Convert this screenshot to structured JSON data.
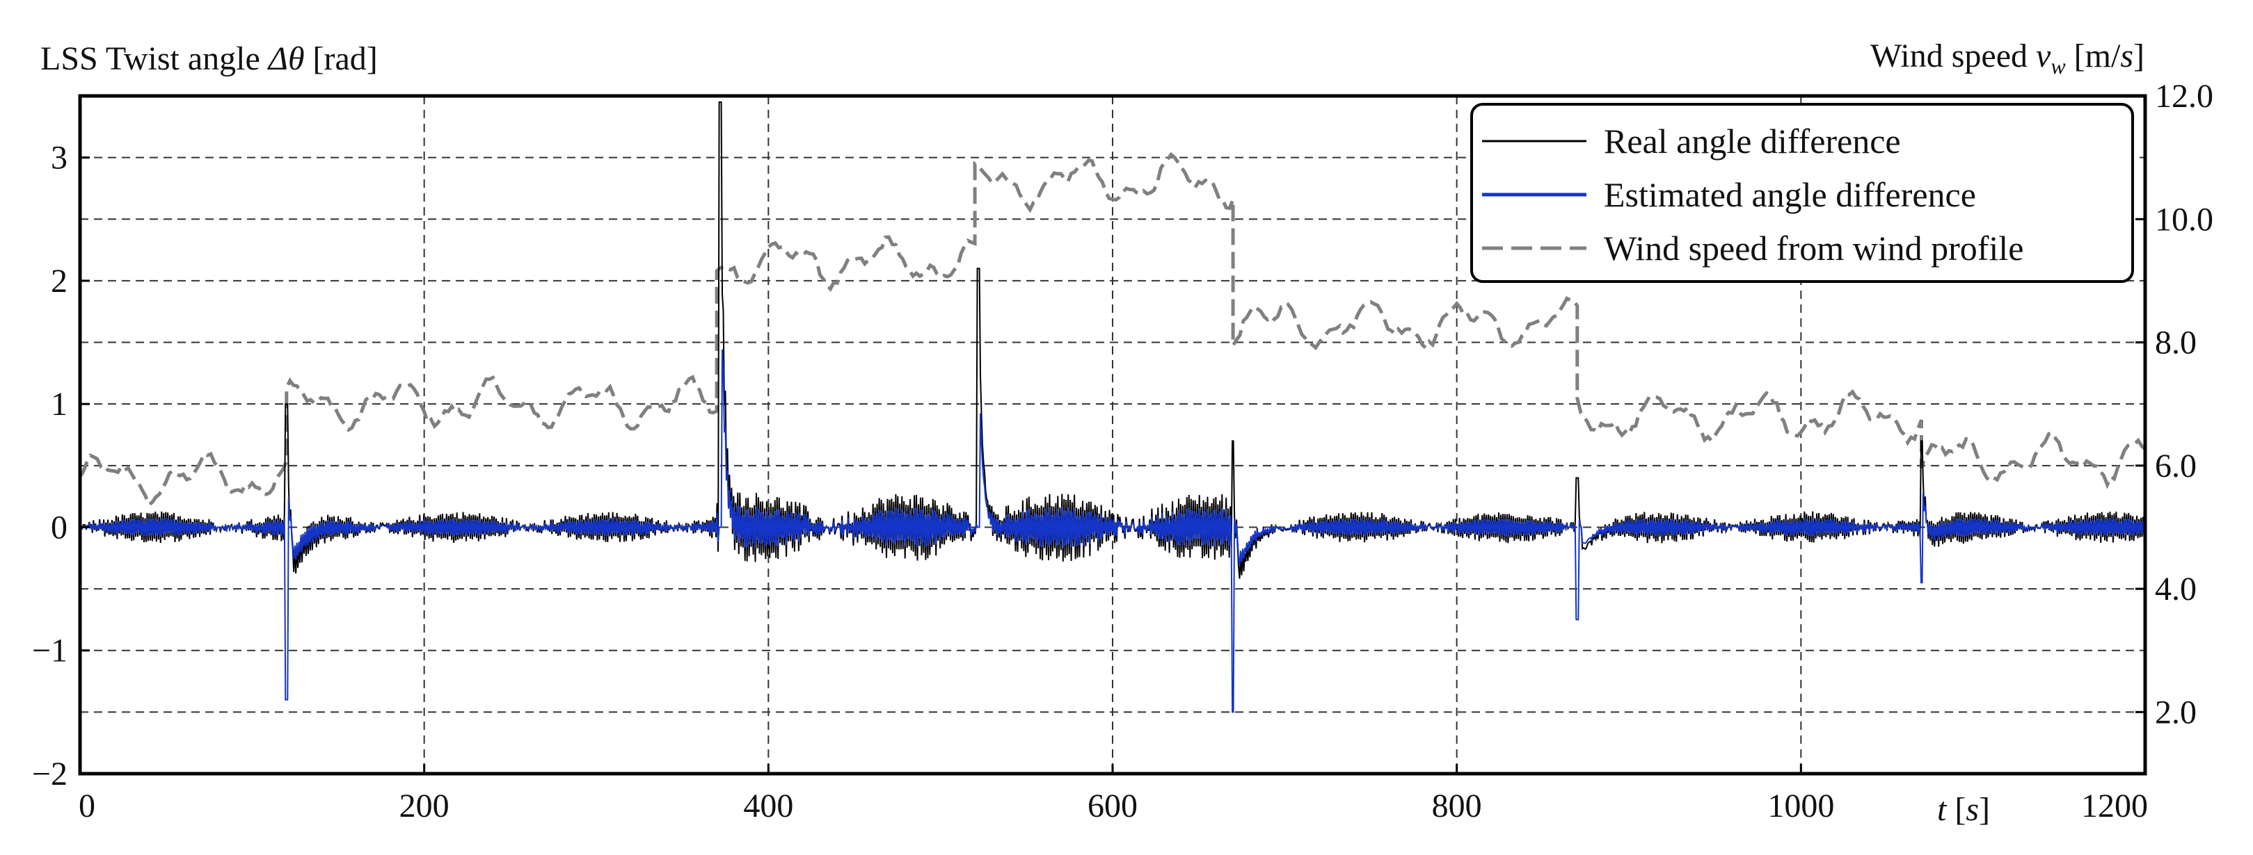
{
  "chart_data": {
    "type": "line",
    "left_axis": {
      "title_parts": [
        "LSS Twist angle ",
        "Δθ",
        " [rad]"
      ],
      "ylim": [
        -2,
        3.5
      ],
      "ticks": [
        3,
        2,
        1,
        0,
        -1,
        -2
      ],
      "tick_labels": [
        "3",
        "2",
        "1",
        "0",
        "−1",
        "−2"
      ]
    },
    "right_axis": {
      "title_parts": [
        "Wind speed ",
        "v",
        "w",
        " [m/",
        "s",
        "]"
      ],
      "ylim": [
        1.0,
        12.0
      ],
      "ticks": [
        12.0,
        10.0,
        8.0,
        6.0,
        4.0,
        2.0
      ],
      "tick_labels": [
        "12.0",
        "10.0",
        "8.0",
        "6.0",
        "4.0",
        "2.0"
      ]
    },
    "x_axis": {
      "xlim": [
        0,
        1200
      ],
      "ticks": [
        0,
        200,
        400,
        600,
        800,
        1000,
        1200
      ],
      "tick_labels": [
        "0",
        "200",
        "400",
        "600",
        "800",
        "1000",
        "1200"
      ],
      "label_parts": [
        "t",
        " [",
        "s",
        "]"
      ]
    },
    "grid": true,
    "legend_position": "top-right",
    "series": [
      {
        "name": "Real angle difference",
        "color": "#000000",
        "style": "solid"
      },
      {
        "name": "Estimated angle difference",
        "color": "#1535c8",
        "style": "solid"
      },
      {
        "name": "Wind speed from wind profile",
        "color": "#808080",
        "style": "dashed"
      }
    ],
    "wind_speed_segments": [
      {
        "t": [
          0,
          120
        ],
        "v": 5.8
      },
      {
        "t": [
          120,
          370
        ],
        "v": 7.0
      },
      {
        "t": [
          370,
          520
        ],
        "v": 9.3
      },
      {
        "t": [
          520,
          670
        ],
        "v": 10.6
      },
      {
        "t": [
          670,
          870
        ],
        "v": 8.3
      },
      {
        "t": [
          870,
          1070
        ],
        "v": 6.8
      },
      {
        "t": [
          1070,
          1200
        ],
        "v": 6.1
      }
    ],
    "angle_events": [
      {
        "t": 0,
        "spike": 0
      },
      {
        "t": 120,
        "spike": 1.0,
        "dip": -1.4
      },
      {
        "t": 372,
        "spike": 3.5,
        "dip": 0.0
      },
      {
        "t": 522,
        "spike": 2.1,
        "dip": 0.0
      },
      {
        "t": 670,
        "spike": 0.7,
        "dip": -1.5
      },
      {
        "t": 870,
        "spike": 0.4,
        "dip": -0.75
      },
      {
        "t": 1070,
        "spike": 0.7,
        "dip": -0.45
      }
    ]
  }
}
